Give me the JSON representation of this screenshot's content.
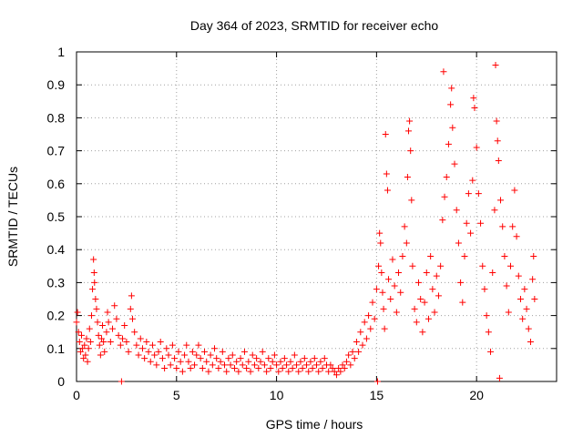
{
  "chart_data": {
    "type": "scatter",
    "title": "Day 364 of 2023, SRMTID for receiver echo",
    "xlabel": "GPS time / hours",
    "ylabel": "SRMTID / TECUs",
    "xlim": [
      0,
      24
    ],
    "ylim": [
      0,
      1
    ],
    "x_ticks": [
      0,
      5,
      10,
      15,
      20
    ],
    "x_tick_labels": [
      "0",
      "5",
      "10",
      "15",
      "20"
    ],
    "y_ticks": [
      0,
      0.1,
      0.2,
      0.3,
      0.4,
      0.5,
      0.6,
      0.7,
      0.8,
      0.9,
      1
    ],
    "y_tick_labels": [
      "0",
      "0.1",
      "0.2",
      "0.3",
      "0.4",
      "0.5",
      "0.6",
      "0.7",
      "0.8",
      "0.9",
      "1"
    ],
    "grid": true,
    "marker": "+",
    "series_color": "#ff0000",
    "series": [
      {
        "name": "SRMTID",
        "points": [
          [
            0.0,
            0.18
          ],
          [
            0.05,
            0.21
          ],
          [
            0.1,
            0.15
          ],
          [
            0.15,
            0.12
          ],
          [
            0.2,
            0.09
          ],
          [
            0.25,
            0.14
          ],
          [
            0.3,
            0.1
          ],
          [
            0.35,
            0.07
          ],
          [
            0.4,
            0.11
          ],
          [
            0.45,
            0.08
          ],
          [
            0.5,
            0.13
          ],
          [
            0.55,
            0.06
          ],
          [
            0.6,
            0.1
          ],
          [
            0.65,
            0.16
          ],
          [
            0.7,
            0.12
          ],
          [
            0.75,
            0.2
          ],
          [
            0.8,
            0.28
          ],
          [
            0.85,
            0.37
          ],
          [
            0.88,
            0.33
          ],
          [
            0.9,
            0.3
          ],
          [
            0.95,
            0.25
          ],
          [
            1.0,
            0.22
          ],
          [
            1.05,
            0.18
          ],
          [
            1.1,
            0.14
          ],
          [
            1.15,
            0.11
          ],
          [
            1.2,
            0.08
          ],
          [
            1.25,
            0.13
          ],
          [
            1.3,
            0.17
          ],
          [
            1.35,
            0.12
          ],
          [
            1.4,
            0.09
          ],
          [
            1.5,
            0.15
          ],
          [
            1.55,
            0.21
          ],
          [
            1.6,
            0.18
          ],
          [
            1.7,
            0.12
          ],
          [
            1.8,
            0.16
          ],
          [
            1.9,
            0.23
          ],
          [
            2.0,
            0.19
          ],
          [
            2.1,
            0.14
          ],
          [
            2.2,
            0.11
          ],
          [
            2.25,
            0.0
          ],
          [
            2.3,
            0.13
          ],
          [
            2.4,
            0.17
          ],
          [
            2.5,
            0.12
          ],
          [
            2.6,
            0.09
          ],
          [
            2.7,
            0.22
          ],
          [
            2.75,
            0.26
          ],
          [
            2.8,
            0.19
          ],
          [
            2.9,
            0.15
          ],
          [
            3.0,
            0.11
          ],
          [
            3.1,
            0.08
          ],
          [
            3.2,
            0.13
          ],
          [
            3.3,
            0.1
          ],
          [
            3.4,
            0.07
          ],
          [
            3.5,
            0.12
          ],
          [
            3.6,
            0.09
          ],
          [
            3.7,
            0.06
          ],
          [
            3.8,
            0.11
          ],
          [
            3.9,
            0.08
          ],
          [
            4.0,
            0.05
          ],
          [
            4.1,
            0.09
          ],
          [
            4.2,
            0.12
          ],
          [
            4.3,
            0.07
          ],
          [
            4.4,
            0.04
          ],
          [
            4.5,
            0.1
          ],
          [
            4.6,
            0.08
          ],
          [
            4.7,
            0.05
          ],
          [
            4.8,
            0.11
          ],
          [
            4.9,
            0.07
          ],
          [
            5.0,
            0.04
          ],
          [
            5.1,
            0.09
          ],
          [
            5.2,
            0.06
          ],
          [
            5.3,
            0.03
          ],
          [
            5.4,
            0.08
          ],
          [
            5.5,
            0.11
          ],
          [
            5.6,
            0.06
          ],
          [
            5.7,
            0.04
          ],
          [
            5.8,
            0.09
          ],
          [
            5.9,
            0.05
          ],
          [
            6.0,
            0.08
          ],
          [
            6.1,
            0.11
          ],
          [
            6.2,
            0.07
          ],
          [
            6.3,
            0.04
          ],
          [
            6.4,
            0.09
          ],
          [
            6.5,
            0.06
          ],
          [
            6.6,
            0.03
          ],
          [
            6.7,
            0.08
          ],
          [
            6.8,
            0.05
          ],
          [
            6.9,
            0.1
          ],
          [
            7.0,
            0.07
          ],
          [
            7.1,
            0.04
          ],
          [
            7.2,
            0.06
          ],
          [
            7.3,
            0.09
          ],
          [
            7.4,
            0.05
          ],
          [
            7.5,
            0.03
          ],
          [
            7.6,
            0.07
          ],
          [
            7.7,
            0.05
          ],
          [
            7.8,
            0.08
          ],
          [
            7.9,
            0.04
          ],
          [
            8.0,
            0.06
          ],
          [
            8.1,
            0.03
          ],
          [
            8.2,
            0.07
          ],
          [
            8.3,
            0.05
          ],
          [
            8.4,
            0.09
          ],
          [
            8.5,
            0.04
          ],
          [
            8.6,
            0.06
          ],
          [
            8.7,
            0.03
          ],
          [
            8.8,
            0.08
          ],
          [
            8.9,
            0.05
          ],
          [
            9.0,
            0.07
          ],
          [
            9.1,
            0.04
          ],
          [
            9.2,
            0.06
          ],
          [
            9.3,
            0.09
          ],
          [
            9.4,
            0.05
          ],
          [
            9.5,
            0.03
          ],
          [
            9.6,
            0.07
          ],
          [
            9.7,
            0.04
          ],
          [
            9.8,
            0.06
          ],
          [
            9.9,
            0.08
          ],
          [
            10.0,
            0.05
          ],
          [
            10.1,
            0.03
          ],
          [
            10.2,
            0.06
          ],
          [
            10.3,
            0.04
          ],
          [
            10.4,
            0.07
          ],
          [
            10.5,
            0.05
          ],
          [
            10.6,
            0.03
          ],
          [
            10.7,
            0.06
          ],
          [
            10.8,
            0.04
          ],
          [
            10.9,
            0.08
          ],
          [
            11.0,
            0.05
          ],
          [
            11.1,
            0.03
          ],
          [
            11.2,
            0.06
          ],
          [
            11.3,
            0.04
          ],
          [
            11.4,
            0.07
          ],
          [
            11.5,
            0.05
          ],
          [
            11.6,
            0.03
          ],
          [
            11.7,
            0.06
          ],
          [
            11.8,
            0.04
          ],
          [
            11.9,
            0.07
          ],
          [
            12.0,
            0.05
          ],
          [
            12.1,
            0.03
          ],
          [
            12.2,
            0.06
          ],
          [
            12.3,
            0.04
          ],
          [
            12.4,
            0.07
          ],
          [
            12.5,
            0.05
          ],
          [
            12.6,
            0.03
          ],
          [
            12.7,
            0.05
          ],
          [
            12.8,
            0.04
          ],
          [
            12.9,
            0.03
          ],
          [
            13.0,
            0.02
          ],
          [
            13.1,
            0.04
          ],
          [
            13.2,
            0.03
          ],
          [
            13.3,
            0.05
          ],
          [
            13.4,
            0.04
          ],
          [
            13.5,
            0.06
          ],
          [
            13.6,
            0.08
          ],
          [
            13.7,
            0.05
          ],
          [
            13.8,
            0.09
          ],
          [
            13.9,
            0.07
          ],
          [
            14.0,
            0.12
          ],
          [
            14.1,
            0.09
          ],
          [
            14.2,
            0.15
          ],
          [
            14.3,
            0.11
          ],
          [
            14.4,
            0.18
          ],
          [
            14.5,
            0.13
          ],
          [
            14.6,
            0.2
          ],
          [
            14.7,
            0.16
          ],
          [
            14.8,
            0.24
          ],
          [
            14.9,
            0.19
          ],
          [
            15.0,
            0.28
          ],
          [
            15.05,
            0.0
          ],
          [
            15.1,
            0.35
          ],
          [
            15.15,
            0.45
          ],
          [
            15.2,
            0.42
          ],
          [
            15.25,
            0.33
          ],
          [
            15.3,
            0.27
          ],
          [
            15.35,
            0.22
          ],
          [
            15.4,
            0.16
          ],
          [
            15.45,
            0.75
          ],
          [
            15.5,
            0.63
          ],
          [
            15.55,
            0.58
          ],
          [
            15.6,
            0.31
          ],
          [
            15.7,
            0.25
          ],
          [
            15.8,
            0.37
          ],
          [
            15.9,
            0.29
          ],
          [
            16.0,
            0.21
          ],
          [
            16.1,
            0.33
          ],
          [
            16.2,
            0.27
          ],
          [
            16.3,
            0.38
          ],
          [
            16.4,
            0.47
          ],
          [
            16.5,
            0.42
          ],
          [
            16.55,
            0.62
          ],
          [
            16.6,
            0.76
          ],
          [
            16.65,
            0.79
          ],
          [
            16.7,
            0.7
          ],
          [
            16.75,
            0.55
          ],
          [
            16.8,
            0.35
          ],
          [
            16.9,
            0.22
          ],
          [
            17.0,
            0.18
          ],
          [
            17.1,
            0.3
          ],
          [
            17.2,
            0.25
          ],
          [
            17.3,
            0.15
          ],
          [
            17.4,
            0.24
          ],
          [
            17.5,
            0.33
          ],
          [
            17.6,
            0.19
          ],
          [
            17.7,
            0.38
          ],
          [
            17.8,
            0.28
          ],
          [
            17.9,
            0.21
          ],
          [
            18.0,
            0.32
          ],
          [
            18.1,
            0.26
          ],
          [
            18.2,
            0.35
          ],
          [
            18.3,
            0.49
          ],
          [
            18.35,
            0.94
          ],
          [
            18.4,
            0.56
          ],
          [
            18.5,
            0.62
          ],
          [
            18.6,
            0.72
          ],
          [
            18.7,
            0.84
          ],
          [
            18.75,
            0.89
          ],
          [
            18.8,
            0.77
          ],
          [
            18.9,
            0.66
          ],
          [
            19.0,
            0.52
          ],
          [
            19.1,
            0.42
          ],
          [
            19.2,
            0.3
          ],
          [
            19.3,
            0.24
          ],
          [
            19.4,
            0.38
          ],
          [
            19.5,
            0.48
          ],
          [
            19.6,
            0.57
          ],
          [
            19.7,
            0.45
          ],
          [
            19.8,
            0.61
          ],
          [
            19.85,
            0.86
          ],
          [
            19.9,
            0.83
          ],
          [
            20.0,
            0.71
          ],
          [
            20.1,
            0.57
          ],
          [
            20.2,
            0.48
          ],
          [
            20.3,
            0.35
          ],
          [
            20.4,
            0.28
          ],
          [
            20.5,
            0.2
          ],
          [
            20.6,
            0.15
          ],
          [
            20.7,
            0.09
          ],
          [
            20.8,
            0.33
          ],
          [
            20.9,
            0.52
          ],
          [
            20.95,
            0.96
          ],
          [
            21.0,
            0.79
          ],
          [
            21.05,
            0.73
          ],
          [
            21.1,
            0.67
          ],
          [
            21.15,
            0.01
          ],
          [
            21.2,
            0.55
          ],
          [
            21.3,
            0.47
          ],
          [
            21.4,
            0.38
          ],
          [
            21.5,
            0.29
          ],
          [
            21.6,
            0.21
          ],
          [
            21.7,
            0.35
          ],
          [
            21.8,
            0.47
          ],
          [
            21.9,
            0.58
          ],
          [
            22.0,
            0.44
          ],
          [
            22.1,
            0.32
          ],
          [
            22.2,
            0.25
          ],
          [
            22.3,
            0.19
          ],
          [
            22.4,
            0.28
          ],
          [
            22.5,
            0.22
          ],
          [
            22.6,
            0.16
          ],
          [
            22.7,
            0.12
          ],
          [
            22.8,
            0.31
          ],
          [
            22.85,
            0.38
          ],
          [
            22.9,
            0.25
          ]
        ]
      }
    ]
  }
}
